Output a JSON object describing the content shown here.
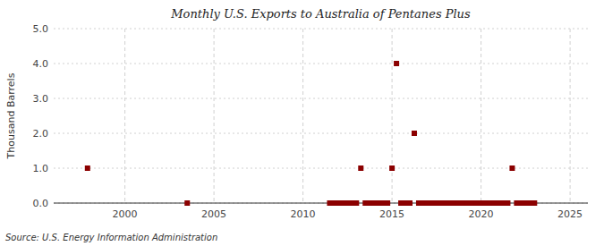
{
  "chart_data": {
    "type": "scatter",
    "title": "Monthly U.S. Exports to Australia of Pentanes Plus",
    "ylabel": "Thousand Barrels",
    "annotations": [
      "Source: U.S. Energy Information Administration"
    ],
    "color": "#8b0000",
    "marker": "square",
    "grid": true,
    "xlim": [
      1996,
      2026
    ],
    "ylim": [
      0.0,
      5.0
    ],
    "xticks": [
      2000,
      2005,
      2010,
      2015,
      2020,
      2025
    ],
    "yticks": [
      {
        "value": 0.0,
        "label": "0.0"
      },
      {
        "value": 1.0,
        "label": "1.0"
      },
      {
        "value": 2.0,
        "label": "2.0"
      },
      {
        "value": 3.0,
        "label": "3.0"
      },
      {
        "value": 4.0,
        "label": "4.0"
      },
      {
        "value": 5.0,
        "label": "5.0"
      }
    ],
    "x": [
      1997.9,
      2003.5,
      2011.5,
      2011.75,
      2012.0,
      2012.25,
      2012.5,
      2012.75,
      2013.0,
      2013.25,
      2013.5,
      2013.75,
      2014.0,
      2014.25,
      2014.5,
      2014.75,
      2015.0,
      2015.25,
      2015.5,
      2015.75,
      2016.0,
      2016.25,
      2016.5,
      2016.75,
      2017.0,
      2017.25,
      2017.5,
      2017.75,
      2018.0,
      2018.25,
      2018.5,
      2018.75,
      2019.0,
      2019.25,
      2019.5,
      2019.75,
      2020.0,
      2020.25,
      2020.5,
      2020.75,
      2021.0,
      2021.25,
      2021.5,
      2021.75,
      2022.0,
      2022.25,
      2022.5,
      2022.75,
      2023.0
    ],
    "values": [
      1.0,
      0.0,
      0.0,
      0.0,
      0.0,
      0.0,
      0.0,
      0.0,
      0.0,
      1.0,
      0.0,
      0.0,
      0.0,
      0.0,
      0.0,
      0.0,
      1.0,
      4.0,
      0.0,
      0.0,
      0.0,
      2.0,
      0.0,
      0.0,
      0.0,
      0.0,
      0.0,
      0.0,
      0.0,
      0.0,
      0.0,
      0.0,
      0.0,
      0.0,
      0.0,
      0.0,
      0.0,
      0.0,
      0.0,
      0.0,
      0.0,
      0.0,
      0.0,
      1.0,
      0.0,
      0.0,
      0.0,
      0.0,
      0.0
    ]
  }
}
